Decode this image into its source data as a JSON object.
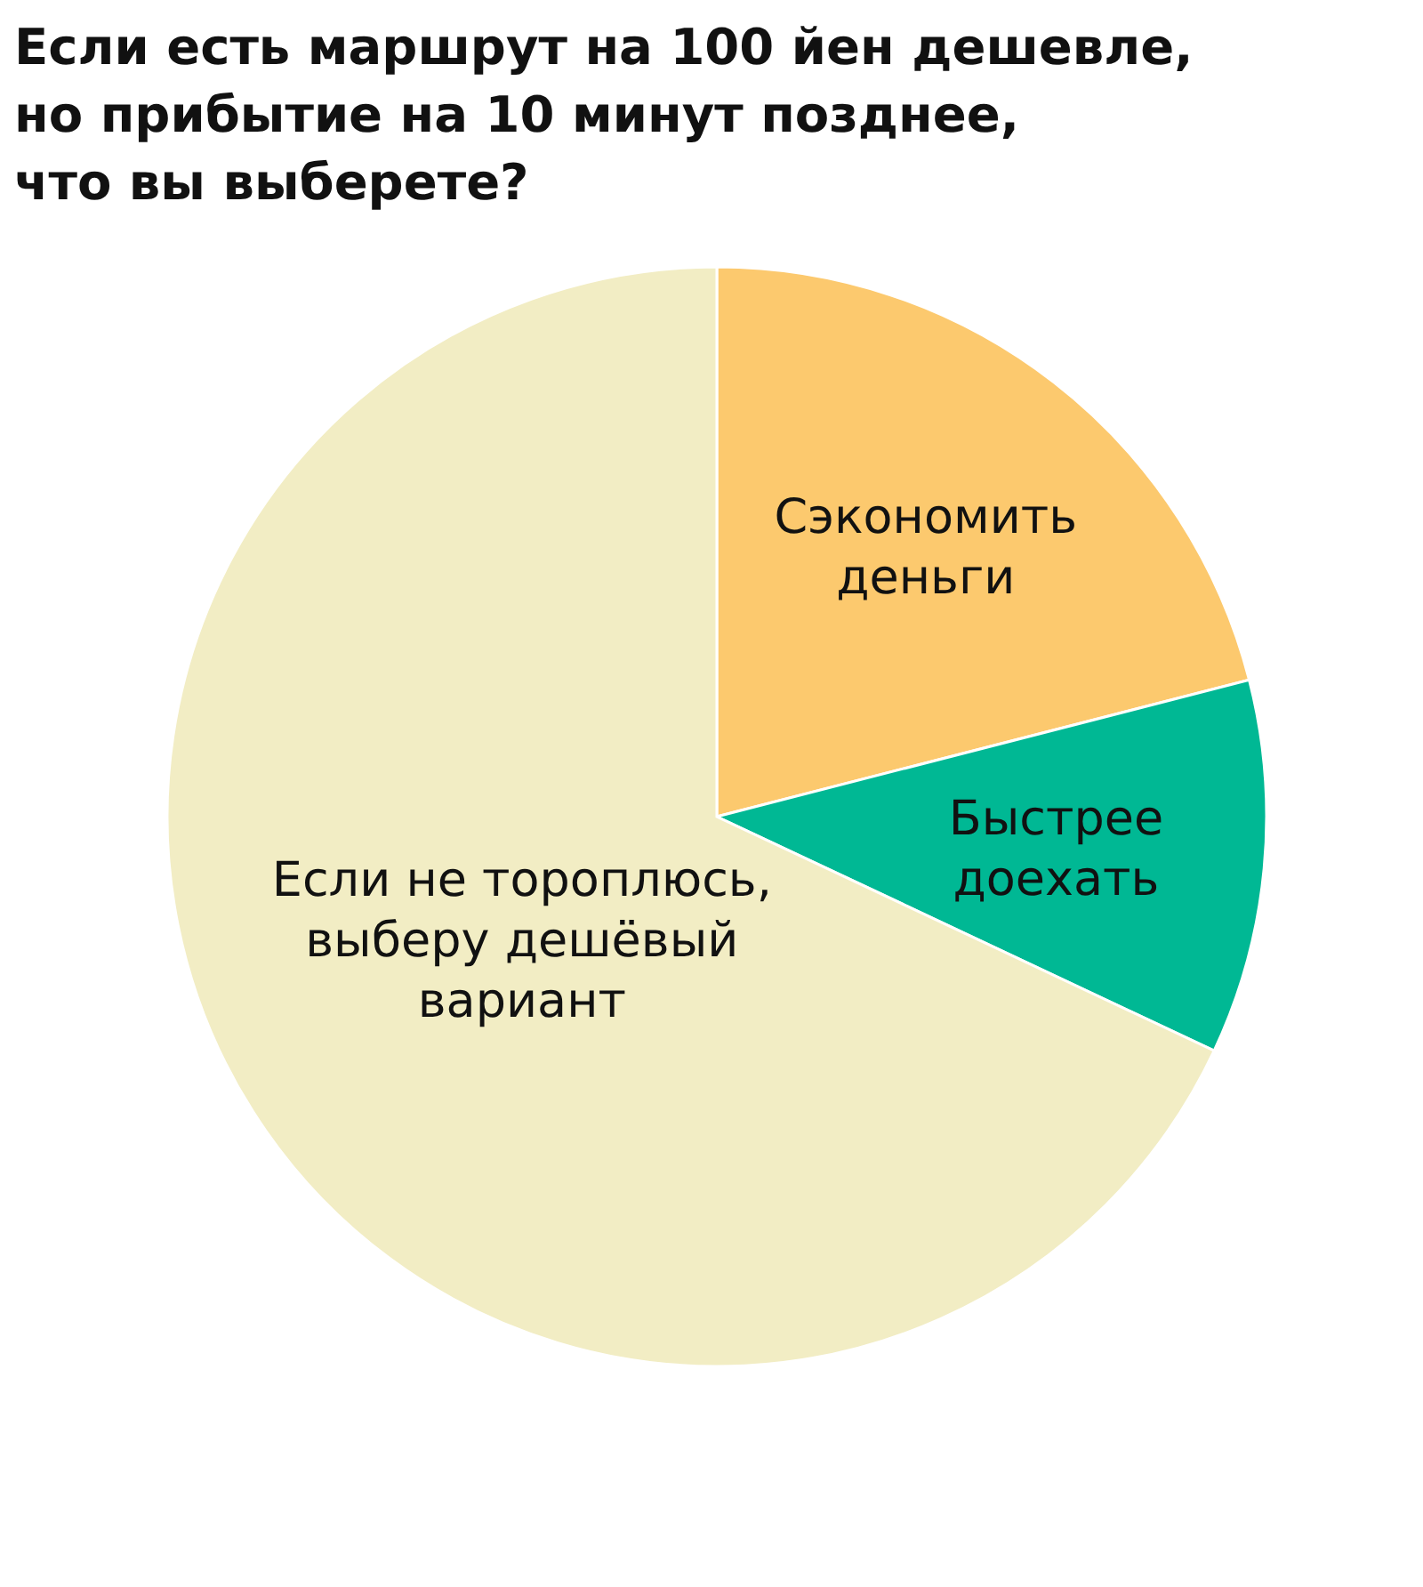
{
  "chart_data": {
    "type": "pie",
    "title": "Если есть маршрут на 100 йен дешевле,\nно прибытие на 10 минут позднее,\nчто вы выберете?",
    "categories": [
      "Сэкономить деньги",
      "Быстрее доехать",
      "Если не тороплюсь, выберу дешёвый вариант"
    ],
    "values": [
      21,
      11,
      68
    ],
    "colors": [
      "#fcc96e",
      "#00b894",
      "#f2edc4"
    ]
  }
}
